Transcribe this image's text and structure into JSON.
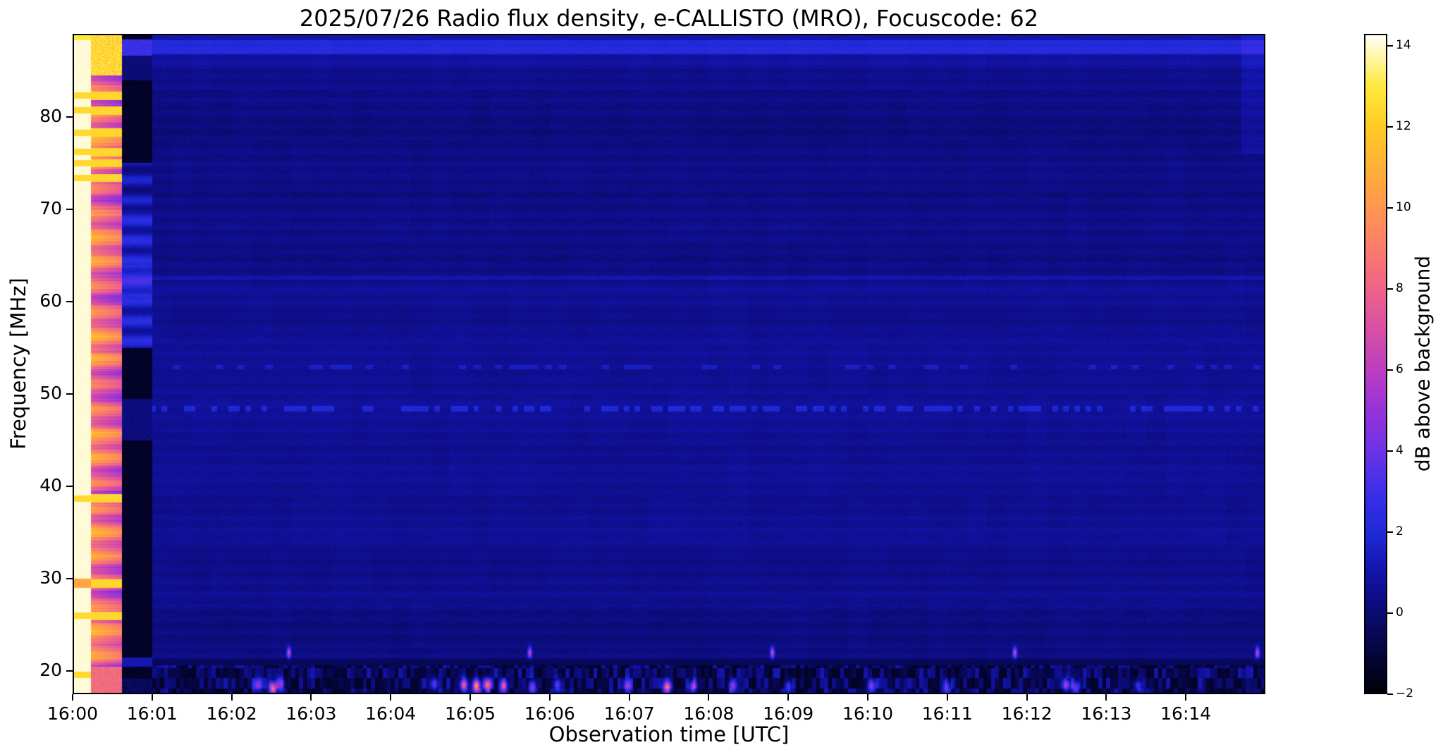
{
  "chart_data": {
    "type": "heatmap",
    "title": "2025/07/26  Radio flux density, e-CALLISTO (MRO), Focuscode: 62",
    "date": "2025/07/26",
    "instrument": "e-CALLISTO",
    "station": "MRO",
    "focuscode": "62",
    "xlabel": "Observation time [UTC]",
    "ylabel": "Frequency [MHz]",
    "colorbar_label": "dB above background",
    "x_tick_labels": [
      "16:00",
      "16:01",
      "16:02",
      "16:03",
      "16:04",
      "16:05",
      "16:06",
      "16:07",
      "16:08",
      "16:09",
      "16:10",
      "16:11",
      "16:12",
      "16:13",
      "16:14"
    ],
    "x_tick_minutes": [
      0,
      1,
      2,
      3,
      4,
      5,
      6,
      7,
      8,
      9,
      10,
      11,
      12,
      13,
      14
    ],
    "x_range_minutes": [
      0,
      15.0
    ],
    "y_tick_values": [
      20,
      30,
      40,
      50,
      60,
      70,
      80
    ],
    "ylim": [
      17.5,
      89.0
    ],
    "colorbar_tick_values": [
      -2,
      0,
      2,
      4,
      6,
      8,
      10,
      12,
      14
    ],
    "colorbar_tick_labels": [
      "−2",
      "0",
      "2",
      "4",
      "6",
      "8",
      "10",
      "12",
      "14"
    ],
    "clim": [
      -2,
      14.3
    ],
    "legend_position": "right-colorbar",
    "grid": false,
    "colormap": {
      "name": "gnuplot2-like",
      "stops": [
        [
          -2,
          "#000006"
        ],
        [
          -1,
          "#05053c"
        ],
        [
          0,
          "#0b0b72"
        ],
        [
          1,
          "#1313a8"
        ],
        [
          2,
          "#1f2ad8"
        ],
        [
          3,
          "#3c2fe8"
        ],
        [
          4,
          "#6c33e4"
        ],
        [
          5,
          "#9633d8"
        ],
        [
          6,
          "#bc3ec0"
        ],
        [
          7,
          "#d84fa4"
        ],
        [
          8,
          "#ec6488"
        ],
        [
          9,
          "#fa7c6c"
        ],
        [
          10,
          "#ff9650"
        ],
        [
          11,
          "#ffb038"
        ],
        [
          12,
          "#ffca24"
        ],
        [
          13,
          "#ffe93c"
        ],
        [
          14,
          "#fffad0"
        ],
        [
          14.3,
          "#ffffff"
        ]
      ]
    },
    "regions": {
      "calibration_white_band": {
        "t": [
          0,
          0.23
        ],
        "level_db": 14.2
      },
      "calibration_pink_band": {
        "t": [
          0.23,
          0.62
        ],
        "level_db": 7.2
      },
      "dark_band": {
        "t": [
          0.62,
          1.0
        ],
        "level_db": -1.6,
        "blue_patch_mhz": [
          55,
          75
        ]
      },
      "main_background": {
        "t": [
          1.0,
          15.0
        ],
        "level_db": 0.42
      }
    },
    "interference_lines_mhz": [
      82.3,
      80.7,
      78.3,
      76.2,
      75.0,
      73.4,
      38.7,
      29.5,
      26.0,
      19.6
    ],
    "bright_top_band_mhz": [
      86.8,
      88.2
    ],
    "bright_top_band_db": 2.2,
    "dotted_row_mhz": 48.4,
    "faint_row_mhz": 52.9,
    "faint_line_mhz": 62.6,
    "bottom_activity_band_mhz": [
      17.5,
      20.6
    ],
    "burst_events": [
      {
        "t": 2.33,
        "f": 18.5,
        "db": 5
      },
      {
        "t": 2.52,
        "f": 18.2,
        "db": 9
      },
      {
        "t": 2.62,
        "f": 18.6,
        "db": 5
      },
      {
        "t": 4.55,
        "f": 18.6,
        "db": 5
      },
      {
        "t": 4.92,
        "f": 18.5,
        "db": 8
      },
      {
        "t": 5.08,
        "f": 18.4,
        "db": 10
      },
      {
        "t": 5.22,
        "f": 18.5,
        "db": 9
      },
      {
        "t": 5.42,
        "f": 18.4,
        "db": 7
      },
      {
        "t": 5.78,
        "f": 18.3,
        "db": 6
      },
      {
        "t": 6.1,
        "f": 18.5,
        "db": 5
      },
      {
        "t": 6.98,
        "f": 18.4,
        "db": 5
      },
      {
        "t": 7.48,
        "f": 18.2,
        "db": 8
      },
      {
        "t": 7.8,
        "f": 18.3,
        "db": 6
      },
      {
        "t": 8.3,
        "f": 18.4,
        "db": 5
      },
      {
        "t": 9.0,
        "f": 18.3,
        "db": 4
      },
      {
        "t": 10.05,
        "f": 18.4,
        "db": 5
      },
      {
        "t": 11.0,
        "f": 18.3,
        "db": 4
      },
      {
        "t": 12.5,
        "f": 18.5,
        "db": 6
      },
      {
        "t": 12.62,
        "f": 18.3,
        "db": 5
      },
      {
        "t": 13.4,
        "f": 18.4,
        "db": 4
      }
    ],
    "dot_events_f22_minutes": [
      2.72,
      5.75,
      8.8,
      11.85,
      14.9
    ]
  }
}
